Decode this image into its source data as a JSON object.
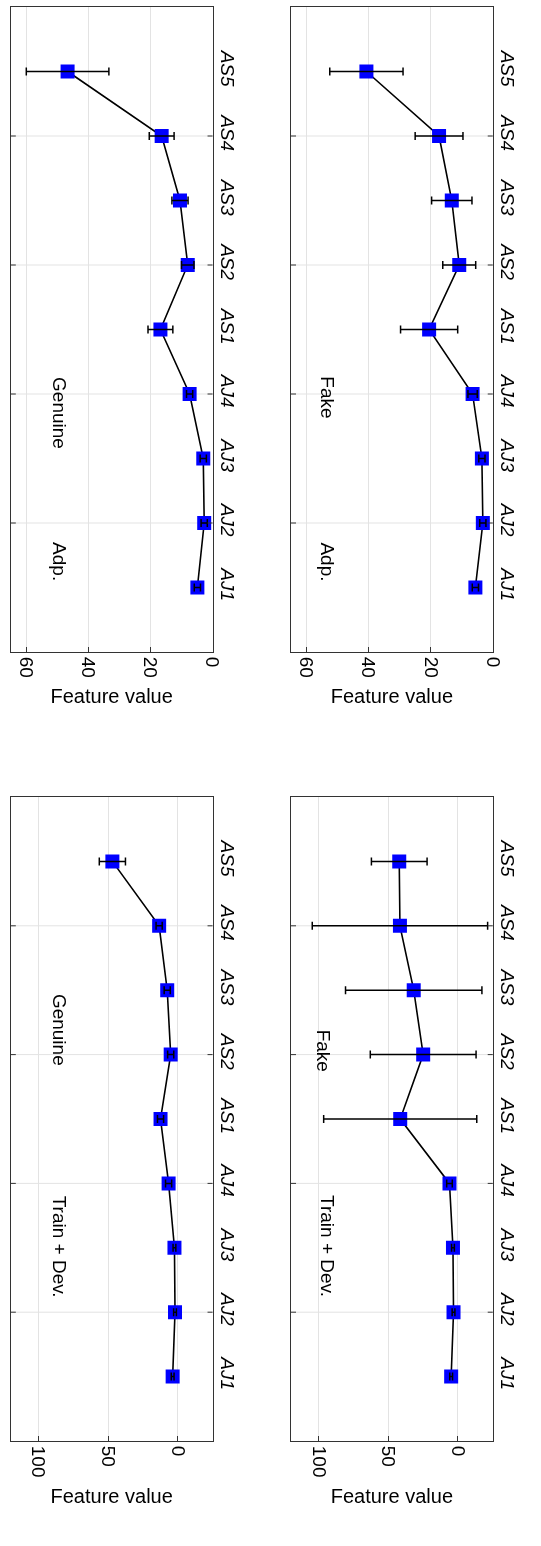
{
  "chart_data": [
    {
      "type": "line",
      "orientation": "horizontal",
      "categories": [
        "AS5",
        "AS4",
        "AS3",
        "AS2",
        "AS1",
        "AJ4",
        "AJ3",
        "AJ2",
        "AJ1"
      ],
      "xlabel": "Feature value",
      "xlim": [
        65,
        0
      ],
      "xticks": [
        60,
        40,
        20,
        0
      ],
      "annotations": [
        "Adp.",
        "Genuine"
      ],
      "grid": true,
      "marker": "square",
      "line_style": "solid",
      "series": [
        {
          "color": "#0000ff",
          "values": [
            46.7,
            16.4,
            10.5,
            8.0,
            16.8,
            7.4,
            3.0,
            2.7,
            4.9
          ],
          "errors": [
            13.3,
            4,
            2.6,
            2,
            4,
            1,
            1,
            1,
            1
          ]
        }
      ]
    },
    {
      "type": "line",
      "orientation": "horizontal",
      "categories": [
        "AS5",
        "AS4",
        "AS3",
        "AS2",
        "AS1",
        "AJ4",
        "AJ3",
        "AJ2",
        "AJ1"
      ],
      "xlabel": "Feature value",
      "xlim": [
        65,
        0
      ],
      "xticks": [
        60,
        40,
        20,
        0
      ],
      "annotations": [
        "Adp.",
        "Fake"
      ],
      "grid": true,
      "marker": "square",
      "line_style": "solid",
      "series": [
        {
          "color": "#0000ff",
          "values": [
            40.7,
            17.3,
            13.2,
            10.8,
            20.5,
            6.5,
            3.5,
            3.2,
            5.6
          ],
          "errors": [
            11.8,
            7.7,
            6.5,
            5.3,
            9.2,
            1.5,
            1,
            1,
            1
          ]
        }
      ]
    },
    {
      "type": "line",
      "orientation": "horizontal",
      "categories": [
        "AS5",
        "AS4",
        "AS3",
        "AS2",
        "AS1",
        "AJ4",
        "AJ3",
        "AJ2",
        "AJ1"
      ],
      "xlabel": "Feature value",
      "xlim": [
        120,
        -25
      ],
      "xticks": [
        100,
        50,
        0
      ],
      "annotations": [
        "Train + Dev.",
        "Genuine"
      ],
      "grid": true,
      "marker": "square",
      "line_style": "solid",
      "series": [
        {
          "color": "#0000ff",
          "values": [
            47,
            13.4,
            7.6,
            5.1,
            12.4,
            6.6,
            2.4,
            2.0,
            3.7
          ],
          "errors": [
            9.4,
            2.2,
            2.2,
            2.2,
            2.2,
            2.2,
            1,
            1,
            1
          ]
        }
      ]
    },
    {
      "type": "line",
      "orientation": "horizontal",
      "categories": [
        "AS5",
        "AS4",
        "AS3",
        "AS2",
        "AS1",
        "AJ4",
        "AJ3",
        "AJ2",
        "AJ1"
      ],
      "xlabel": "Feature value",
      "xlim": [
        120,
        -25
      ],
      "xticks": [
        100,
        50,
        0
      ],
      "annotations": [
        "Train + Dev.",
        "Fake"
      ],
      "grid": true,
      "marker": "square",
      "line_style": "solid",
      "series": [
        {
          "color": "#0000ff",
          "values": [
            42.2,
            41.7,
            31.8,
            25,
            41.5,
            6.1,
            3.6,
            3.2,
            4.9
          ],
          "errors": [
            20,
            63,
            49,
            38,
            55,
            2,
            1,
            1,
            1
          ]
        }
      ]
    }
  ]
}
